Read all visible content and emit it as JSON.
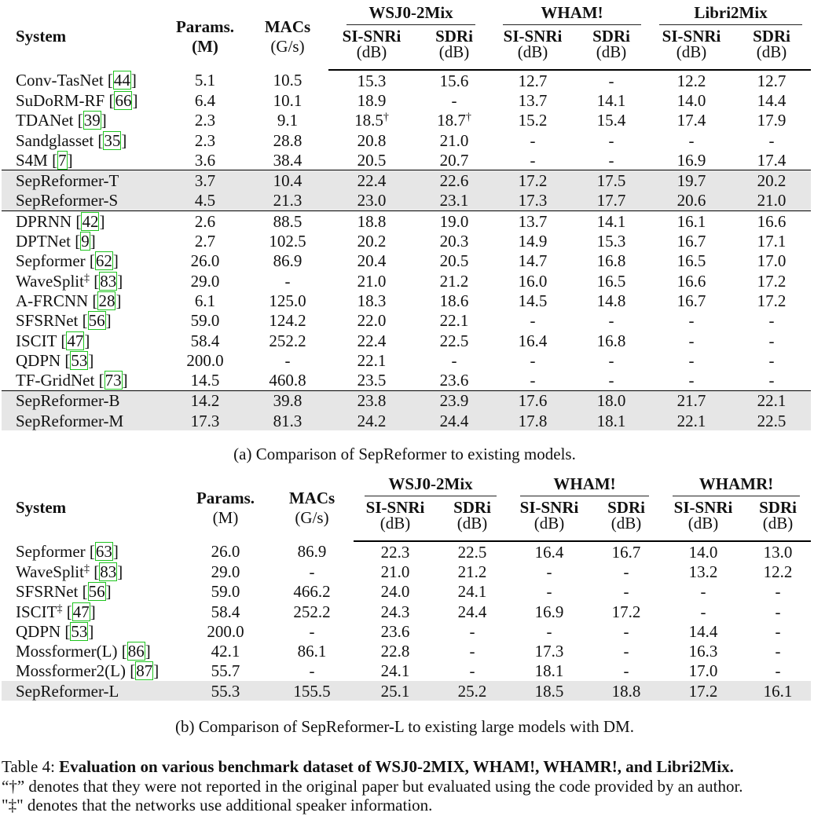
{
  "table_a": {
    "header": {
      "system": "System",
      "params": "Params.",
      "params_unit": "(M)",
      "macs": "MACs",
      "macs_unit": "(G/s)",
      "group1": "WSJ0-2Mix",
      "group2": "WHAM!",
      "group3": "Libri2Mix",
      "si_snri": "SI-SNRi",
      "sdri": "SDRi",
      "db": "(dB)"
    },
    "rows": [
      {
        "system": "Conv-TasNet [",
        "cite": "44",
        "mark": "",
        "params": "5.1",
        "macs": "10.5",
        "w_si": "15.3",
        "w_si_sup": "",
        "w_sd": "15.6",
        "w_sd_sup": "",
        "h_si": "12.7",
        "h_sd": "-",
        "l_si": "12.2",
        "l_sd": "12.7"
      },
      {
        "system": "SuDoRM-RF [",
        "cite": "66",
        "mark": "",
        "params": "6.4",
        "macs": "10.1",
        "w_si": "18.9",
        "w_si_sup": "",
        "w_sd": "-",
        "w_sd_sup": "",
        "h_si": "13.7",
        "h_sd": "14.1",
        "l_si": "14.0",
        "l_sd": "14.4"
      },
      {
        "system": "TDANet [",
        "cite": "39",
        "mark": "",
        "params": "2.3",
        "macs": "9.1",
        "w_si": "18.5",
        "w_si_sup": "†",
        "w_sd": "18.7",
        "w_sd_sup": "†",
        "h_si": "15.2",
        "h_sd": "15.4",
        "l_si": "17.4",
        "l_sd": "17.9"
      },
      {
        "system": "Sandglasset [",
        "cite": "35",
        "mark": "",
        "params": "2.3",
        "macs": "28.8",
        "w_si": "20.8",
        "w_si_sup": "",
        "w_sd": "21.0",
        "w_sd_sup": "",
        "h_si": "-",
        "h_sd": "-",
        "l_si": "-",
        "l_sd": "-"
      },
      {
        "system": "S4M [",
        "cite": "7",
        "mark": "",
        "params": "3.6",
        "macs": "38.4",
        "w_si": "20.5",
        "w_si_sup": "",
        "w_sd": "20.7",
        "w_sd_sup": "",
        "h_si": "-",
        "h_sd": "-",
        "l_si": "16.9",
        "l_sd": "17.4"
      },
      {
        "system": "SepReformer-T",
        "cite": "",
        "mark": "",
        "params": "3.7",
        "macs": "10.4",
        "w_si": "22.4",
        "w_si_sup": "",
        "w_sd": "22.6",
        "w_sd_sup": "",
        "h_si": "17.2",
        "h_sd": "17.5",
        "l_si": "19.7",
        "l_sd": "20.2"
      },
      {
        "system": "SepReformer-S",
        "cite": "",
        "mark": "",
        "params": "4.5",
        "macs": "21.3",
        "w_si": "23.0",
        "w_si_sup": "",
        "w_sd": "23.1",
        "w_sd_sup": "",
        "h_si": "17.3",
        "h_sd": "17.7",
        "l_si": "20.6",
        "l_sd": "21.0"
      },
      {
        "system": "DPRNN [",
        "cite": "42",
        "mark": "",
        "params": "2.6",
        "macs": "88.5",
        "w_si": "18.8",
        "w_si_sup": "",
        "w_sd": "19.0",
        "w_sd_sup": "",
        "h_si": "13.7",
        "h_sd": "14.1",
        "l_si": "16.1",
        "l_sd": "16.6"
      },
      {
        "system": "DPTNet [",
        "cite": "9",
        "mark": "",
        "params": "2.7",
        "macs": "102.5",
        "w_si": "20.2",
        "w_si_sup": "",
        "w_sd": "20.3",
        "w_sd_sup": "",
        "h_si": "14.9",
        "h_sd": "15.3",
        "l_si": "16.7",
        "l_sd": "17.1"
      },
      {
        "system": "Sepformer [",
        "cite": "62",
        "mark": "",
        "params": "26.0",
        "macs": "86.9",
        "w_si": "20.4",
        "w_si_sup": "",
        "w_sd": "20.5",
        "w_sd_sup": "",
        "h_si": "14.7",
        "h_sd": "16.8",
        "l_si": "16.5",
        "l_sd": "17.0"
      },
      {
        "system": "WaveSplit",
        "cite": "83",
        "mark": "‡",
        "params": "29.0",
        "macs": "-",
        "w_si": "21.0",
        "w_si_sup": "",
        "w_sd": "21.2",
        "w_sd_sup": "",
        "h_si": "16.0",
        "h_sd": "16.5",
        "l_si": "16.6",
        "l_sd": "17.2"
      },
      {
        "system": "A-FRCNN [",
        "cite": "28",
        "mark": "",
        "params": "6.1",
        "macs": "125.0",
        "w_si": "18.3",
        "w_si_sup": "",
        "w_sd": "18.6",
        "w_sd_sup": "",
        "h_si": "14.5",
        "h_sd": "14.8",
        "l_si": "16.7",
        "l_sd": "17.2"
      },
      {
        "system": "SFSRNet [",
        "cite": "56",
        "mark": "",
        "params": "59.0",
        "macs": "124.2",
        "w_si": "22.0",
        "w_si_sup": "",
        "w_sd": "22.1",
        "w_sd_sup": "",
        "h_si": "-",
        "h_sd": "-",
        "l_si": "-",
        "l_sd": "-"
      },
      {
        "system": "ISCIT [",
        "cite": "47",
        "mark": "",
        "params": "58.4",
        "macs": "252.2",
        "w_si": "22.4",
        "w_si_sup": "",
        "w_sd": "22.5",
        "w_sd_sup": "",
        "h_si": "16.4",
        "h_sd": "16.8",
        "l_si": "-",
        "l_sd": "-"
      },
      {
        "system": "QDPN [",
        "cite": "53",
        "mark": "",
        "params": "200.0",
        "macs": "-",
        "w_si": "22.1",
        "w_si_sup": "",
        "w_sd": "-",
        "w_sd_sup": "",
        "h_si": "-",
        "h_sd": "-",
        "l_si": "-",
        "l_sd": "-"
      },
      {
        "system": "TF-GridNet [",
        "cite": "73",
        "mark": "",
        "params": "14.5",
        "macs": "460.8",
        "w_si": "23.5",
        "w_si_sup": "",
        "w_sd": "23.6",
        "w_sd_sup": "",
        "h_si": "-",
        "h_sd": "-",
        "l_si": "-",
        "l_sd": "-"
      },
      {
        "system": "SepReformer-B",
        "cite": "",
        "mark": "",
        "params": "14.2",
        "macs": "39.8",
        "w_si": "23.8",
        "w_si_sup": "",
        "w_sd": "23.9",
        "w_sd_sup": "",
        "h_si": "17.6",
        "h_sd": "18.0",
        "l_si": "21.7",
        "l_sd": "22.1"
      },
      {
        "system": "SepReformer-M",
        "cite": "",
        "mark": "",
        "params": "17.3",
        "macs": "81.3",
        "w_si": "24.2",
        "w_si_sup": "",
        "w_sd": "24.4",
        "w_sd_sup": "",
        "h_si": "17.8",
        "h_sd": "18.1",
        "l_si": "22.1",
        "l_sd": "22.5"
      }
    ],
    "caption": "(a) Comparison of SepReformer to existing models."
  },
  "table_b": {
    "header": {
      "system": "System",
      "params": "Params.",
      "params_unit": "(M)",
      "macs": "MACs",
      "macs_unit": "(G/s)",
      "group1": "WSJ0-2Mix",
      "group2": "WHAM!",
      "group3": "WHAMR!",
      "si_snri": "SI-SNRi",
      "sdri": "SDRi",
      "db": "(dB)"
    },
    "rows": [
      {
        "system": "Sepformer [",
        "cite": "63",
        "mark": "",
        "params": "26.0",
        "macs": "86.9",
        "w_si": "22.3",
        "w_sd": "22.5",
        "h_si": "16.4",
        "h_sd": "16.7",
        "r_si": "14.0",
        "r_sd": "13.0"
      },
      {
        "system": "WaveSplit",
        "cite": "83",
        "mark": "‡",
        "params": "29.0",
        "macs": "-",
        "w_si": "21.0",
        "w_sd": "21.2",
        "h_si": "-",
        "h_sd": "-",
        "r_si": "13.2",
        "r_sd": "12.2"
      },
      {
        "system": "SFSRNet [",
        "cite": "56",
        "mark": "",
        "params": "59.0",
        "macs": "466.2",
        "w_si": "24.0",
        "w_sd": "24.1",
        "h_si": "-",
        "h_sd": "-",
        "r_si": "-",
        "r_sd": "-"
      },
      {
        "system": "ISCIT",
        "cite": "47",
        "mark": "‡",
        "params": "58.4",
        "macs": "252.2",
        "w_si": "24.3",
        "w_sd": "24.4",
        "h_si": "16.9",
        "h_sd": "17.2",
        "r_si": "-",
        "r_sd": "-"
      },
      {
        "system": "QDPN [",
        "cite": "53",
        "mark": "",
        "params": "200.0",
        "macs": "-",
        "w_si": "23.6",
        "w_sd": "-",
        "h_si": "-",
        "h_sd": "-",
        "r_si": "14.4",
        "r_sd": "-"
      },
      {
        "system": "Mossformer(L) [",
        "cite": "86",
        "mark": "",
        "params": "42.1",
        "macs": "86.1",
        "w_si": "22.8",
        "w_sd": "-",
        "h_si": "17.3",
        "h_sd": "-",
        "r_si": "16.3",
        "r_sd": "-"
      },
      {
        "system": "Mossformer2(L) [",
        "cite": "87",
        "mark": "",
        "params": "55.7",
        "macs": "-",
        "w_si": "24.1",
        "w_sd": "-",
        "h_si": "18.1",
        "h_sd": "-",
        "r_si": "17.0",
        "r_sd": "-"
      },
      {
        "system": "SepReformer-L",
        "cite": "",
        "mark": "",
        "params": "55.3",
        "macs": "155.5",
        "w_si": "25.1",
        "w_sd": "25.2",
        "h_si": "18.5",
        "h_sd": "18.8",
        "r_si": "17.2",
        "r_sd": "16.1"
      }
    ],
    "caption": "(b) Comparison of SepReformer-L to existing large models with DM."
  },
  "main_caption": {
    "label": "Table 4: ",
    "bold": "Evaluation on various benchmark dataset of WSJ0-2MIX, WHAM!, WHAMR!, and Libri2Mix.",
    "line2": "“†” denotes that they were not reported in the original paper but evaluated using the code provided by an author.",
    "line3": "\"‡\" denotes that the networks use additional speaker information."
  }
}
